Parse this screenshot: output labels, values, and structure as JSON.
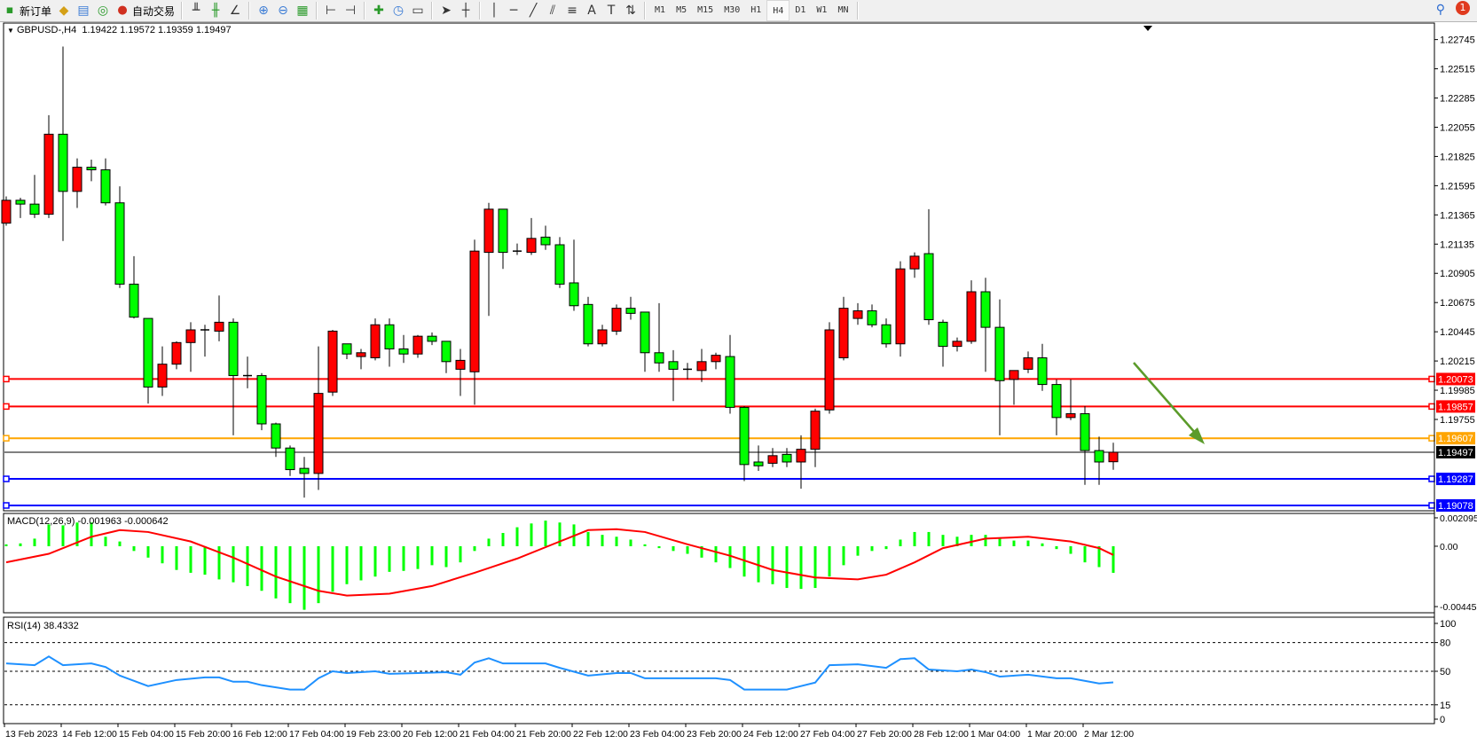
{
  "toolbar": {
    "new_order": "新订单",
    "auto_trading": "自动交易",
    "timeframes": [
      "M1",
      "M5",
      "M15",
      "M30",
      "H1",
      "H4",
      "D1",
      "W1",
      "MN"
    ],
    "active_timeframe": "H4",
    "notification_count": "1"
  },
  "chart": {
    "title": "GBPUSD-,H4",
    "ohlc_header": "1.19422 1.19572 1.19359 1.19497",
    "macd_label": "MACD(12,26,9) -0.001963 -0.000642",
    "rsi_label": "RSI(14) 38.4332"
  },
  "chart_data": [
    {
      "type": "candlestick",
      "symbol": "GBPUSD-",
      "timeframe": "H4",
      "candle_format": [
        "open",
        "high",
        "low",
        "close"
      ],
      "colors": {
        "bull": "#ff0000",
        "bear": "#00ff00",
        "outline": "#000000"
      },
      "ylim": [
        1.19036,
        1.22875
      ],
      "price_ticks": [
        "1.22745",
        "1.22515",
        "1.22285",
        "1.22055",
        "1.21825",
        "1.21595",
        "1.21365",
        "1.21135",
        "1.20905",
        "1.20675",
        "1.20445",
        "1.20215",
        "1.19985",
        "1.19755"
      ],
      "x_labels": [
        "13 Feb 2023",
        "14 Feb 12:00",
        "15 Feb 04:00",
        "15 Feb 20:00",
        "16 Feb 12:00",
        "17 Feb 04:00",
        "19 Feb 23:00",
        "20 Feb 12:00",
        "21 Feb 04:00",
        "21 Feb 20:00",
        "22 Feb 12:00",
        "23 Feb 04:00",
        "23 Feb 20:00",
        "24 Feb 12:00",
        "27 Feb 04:00",
        "27 Feb 20:00",
        "28 Feb 12:00",
        "1 Mar 04:00",
        "1 Mar 20:00",
        "2 Mar 12:00"
      ],
      "x_label_every_bars": 4,
      "hlines": [
        {
          "price": "1.20073",
          "color": "#ff0000"
        },
        {
          "price": "1.19857",
          "color": "#ff0000"
        },
        {
          "price": "1.19607",
          "color": "#ffa500"
        },
        {
          "price": "1.19287",
          "color": "#0000ff"
        },
        {
          "price": "1.19078",
          "color": "#0000ff"
        }
      ],
      "bid": {
        "price": "1.19497",
        "color": "#000000"
      },
      "arrow_color": "#5b9b2a",
      "candles": [
        [
          1.213,
          1.2151,
          1.2128,
          1.2148
        ],
        [
          1.2148,
          1.215,
          1.2134,
          1.2145
        ],
        [
          1.2145,
          1.2168,
          1.2134,
          1.2137
        ],
        [
          1.2137,
          1.2215,
          1.2134,
          1.22
        ],
        [
          1.22,
          1.2269,
          1.2116,
          1.2155
        ],
        [
          1.2155,
          1.2181,
          1.2142,
          1.2174
        ],
        [
          1.2174,
          1.218,
          1.2163,
          1.2172
        ],
        [
          1.2172,
          1.2181,
          1.2144,
          1.2146
        ],
        [
          1.2146,
          1.2159,
          1.2079,
          1.2082
        ],
        [
          1.2082,
          1.2104,
          1.2055,
          1.2056
        ],
        [
          1.2055,
          1.2055,
          1.1988,
          1.2001
        ],
        [
          1.2001,
          1.2033,
          1.1994,
          1.2019
        ],
        [
          1.2019,
          1.2037,
          1.2015,
          1.2036
        ],
        [
          1.2036,
          1.2052,
          1.2013,
          1.2046
        ],
        [
          1.2046,
          1.205,
          1.2025,
          1.2045
        ],
        [
          1.2045,
          1.2073,
          1.2037,
          1.2052
        ],
        [
          1.2052,
          1.2055,
          1.1963,
          1.201
        ],
        [
          1.201,
          1.2025,
          1.2,
          1.2009
        ],
        [
          1.201,
          1.2012,
          1.1967,
          1.1972
        ],
        [
          1.1972,
          1.1973,
          1.1946,
          1.1953
        ],
        [
          1.1953,
          1.1955,
          1.1931,
          1.1936
        ],
        [
          1.1937,
          1.1946,
          1.1914,
          1.1933
        ],
        [
          1.1933,
          1.2033,
          1.192,
          1.1996
        ],
        [
          1.1997,
          1.2046,
          1.1994,
          1.2045
        ],
        [
          1.2035,
          1.2035,
          1.2023,
          1.2027
        ],
        [
          1.2025,
          1.2031,
          1.2015,
          1.2028
        ],
        [
          1.2024,
          1.2055,
          1.2022,
          1.205
        ],
        [
          1.205,
          1.2055,
          1.2017,
          1.2031
        ],
        [
          1.2031,
          1.2042,
          1.202,
          1.2027
        ],
        [
          1.2027,
          1.2042,
          1.2024,
          1.2041
        ],
        [
          1.2041,
          1.2044,
          1.2034,
          1.2037
        ],
        [
          1.2037,
          1.2037,
          1.2012,
          1.2021
        ],
        [
          1.2015,
          1.2031,
          1.1994,
          1.2022
        ],
        [
          1.2013,
          1.2117,
          1.1987,
          1.2108
        ],
        [
          1.2107,
          1.2146,
          1.2057,
          1.2141
        ],
        [
          1.2141,
          1.2141,
          1.2094,
          1.2107
        ],
        [
          1.2107,
          1.2114,
          1.2105,
          1.2108
        ],
        [
          1.2107,
          1.2134,
          1.2105,
          1.2118
        ],
        [
          1.2119,
          1.2128,
          1.2109,
          1.2113
        ],
        [
          1.2113,
          1.2119,
          1.2079,
          1.2082
        ],
        [
          1.2083,
          1.2117,
          1.2061,
          1.2065
        ],
        [
          1.2066,
          1.2072,
          1.2033,
          1.2035
        ],
        [
          1.2035,
          1.205,
          1.2033,
          1.2046
        ],
        [
          1.2045,
          1.2066,
          1.2042,
          1.2063
        ],
        [
          1.2063,
          1.2072,
          1.2054,
          1.2059
        ],
        [
          1.206,
          1.206,
          1.2013,
          1.2028
        ],
        [
          1.2028,
          1.2067,
          1.2013,
          1.202
        ],
        [
          1.2021,
          1.203,
          1.199,
          1.2015
        ],
        [
          1.2015,
          1.202,
          1.2007,
          1.2015
        ],
        [
          1.2014,
          1.2031,
          1.2005,
          1.2021
        ],
        [
          1.2021,
          1.2028,
          1.2015,
          1.2026
        ],
        [
          1.2025,
          1.2042,
          1.198,
          1.1985
        ],
        [
          1.1985,
          1.1986,
          1.1927,
          1.194
        ],
        [
          1.1942,
          1.1955,
          1.1935,
          1.1939
        ],
        [
          1.1941,
          1.1953,
          1.1938,
          1.1947
        ],
        [
          1.1948,
          1.1953,
          1.1938,
          1.1942
        ],
        [
          1.1942,
          1.1963,
          1.1921,
          1.1952
        ],
        [
          1.1952,
          1.1984,
          1.1938,
          1.1982
        ],
        [
          1.1983,
          1.2052,
          1.198,
          1.2046
        ],
        [
          1.2024,
          1.2072,
          1.2022,
          1.2063
        ],
        [
          1.2055,
          1.2067,
          1.205,
          1.2061
        ],
        [
          1.2061,
          1.2066,
          1.2048,
          1.205
        ],
        [
          1.205,
          1.2055,
          1.2032,
          1.2035
        ],
        [
          1.2035,
          1.21,
          1.2025,
          1.2094
        ],
        [
          1.2094,
          1.2107,
          1.2087,
          1.2104
        ],
        [
          1.2106,
          1.2141,
          1.205,
          1.2054
        ],
        [
          1.2052,
          1.2054,
          1.2017,
          1.2033
        ],
        [
          1.2033,
          1.204,
          1.2029,
          1.2037
        ],
        [
          1.2037,
          1.2085,
          1.2035,
          1.2076
        ],
        [
          1.2076,
          1.2087,
          1.2013,
          1.2048
        ],
        [
          1.2048,
          1.207,
          1.1963,
          1.2006
        ],
        [
          1.2007,
          1.2014,
          1.1987,
          1.2014
        ],
        [
          1.2015,
          1.2029,
          1.2012,
          1.2024
        ],
        [
          1.2024,
          1.2035,
          1.1998,
          1.2003
        ],
        [
          1.2003,
          1.2007,
          1.1963,
          1.1977
        ],
        [
          1.1977,
          1.2007,
          1.1975,
          1.198
        ],
        [
          1.198,
          1.1986,
          1.1924,
          1.1951
        ],
        [
          1.1951,
          1.1962,
          1.1924,
          1.1942
        ],
        [
          1.19422,
          1.19572,
          1.19359,
          1.19497
        ]
      ]
    },
    {
      "type": "bar",
      "indicator": "MACD(12,26,9)",
      "ylim": [
        -0.00491,
        0.00242
      ],
      "ticks": [
        "0.002095",
        "0.00",
        "-0.004455"
      ],
      "hist_color": "#00ff00",
      "signal_color": "#ff0000",
      "histogram": [
        0.00014,
        0.00021,
        0.00056,
        0.00161,
        0.00154,
        0.00175,
        0.00175,
        0.0007,
        0.00035,
        -0.00035,
        -0.00084,
        -0.00126,
        -0.00175,
        -0.00196,
        -0.0021,
        -0.00245,
        -0.00266,
        -0.00294,
        -0.00329,
        -0.00385,
        -0.0042,
        -0.00469,
        -0.0042,
        -0.00336,
        -0.0028,
        -0.00252,
        -0.00224,
        -0.00189,
        -0.00182,
        -0.00168,
        -0.0014,
        -0.00154,
        -0.00119,
        -0.00035,
        0.00056,
        0.00098,
        0.0014,
        0.00168,
        0.00189,
        0.00175,
        0.00161,
        0.00105,
        0.00084,
        0.0007,
        0.00049,
        0.00014,
        -0.00014,
        -0.00035,
        -0.00056,
        -0.00084,
        -0.00119,
        -0.00161,
        -0.00224,
        -0.00266,
        -0.0028,
        -0.00308,
        -0.00315,
        -0.00308,
        -0.00224,
        -0.0014,
        -0.0007,
        -0.00035,
        -0.00021,
        0.00049,
        0.00105,
        0.00105,
        0.00084,
        0.0007,
        0.00084,
        0.00084,
        0.00056,
        0.00042,
        0.00042,
        0.00021,
        -0.00021,
        -0.00056,
        -0.00119,
        -0.00154,
        -0.001963
      ],
      "signal": [
        [
          0,
          -0.00119
        ],
        [
          3,
          -0.00056
        ],
        [
          6,
          0.0007
        ],
        [
          8,
          0.00119
        ],
        [
          10,
          0.00105
        ],
        [
          13,
          0.00035
        ],
        [
          16,
          -0.00084
        ],
        [
          19,
          -0.00224
        ],
        [
          22,
          -0.00329
        ],
        [
          24,
          -0.00364
        ],
        [
          27,
          -0.0035
        ],
        [
          30,
          -0.00294
        ],
        [
          33,
          -0.00196
        ],
        [
          36,
          -0.00091
        ],
        [
          39,
          0.00035
        ],
        [
          41,
          0.00119
        ],
        [
          43,
          0.00126
        ],
        [
          45,
          0.00105
        ],
        [
          48,
          0.00014
        ],
        [
          51,
          -0.0007
        ],
        [
          54,
          -0.00175
        ],
        [
          57,
          -0.00231
        ],
        [
          60,
          -0.00245
        ],
        [
          62,
          -0.0021
        ],
        [
          64,
          -0.00119
        ],
        [
          66,
          -0.00014
        ],
        [
          69,
          0.00056
        ],
        [
          72,
          0.0007
        ],
        [
          75,
          0.00035
        ],
        [
          77,
          -0.00014
        ],
        [
          78,
          -0.000642
        ]
      ]
    },
    {
      "type": "line",
      "indicator": "RSI(14)",
      "ylim": [
        0,
        100
      ],
      "ticks": [
        "100",
        "80",
        "50",
        "15",
        "0"
      ],
      "levels": [
        80,
        50,
        15
      ],
      "line_color": "#1e90ff",
      "points": [
        [
          0,
          58.2
        ],
        [
          2,
          56.4
        ],
        [
          3,
          65.5
        ],
        [
          4,
          56.4
        ],
        [
          6,
          58.2
        ],
        [
          7,
          54.5
        ],
        [
          8,
          45.5
        ],
        [
          10,
          34.5
        ],
        [
          12,
          40.9
        ],
        [
          14,
          43.6
        ],
        [
          15,
          43.6
        ],
        [
          16,
          39.1
        ],
        [
          17,
          39.1
        ],
        [
          18,
          35.5
        ],
        [
          20,
          30.9
        ],
        [
          21,
          30.9
        ],
        [
          22,
          42.7
        ],
        [
          23,
          50
        ],
        [
          24,
          48.2
        ],
        [
          26,
          50
        ],
        [
          27,
          47.3
        ],
        [
          29,
          48.2
        ],
        [
          31,
          49.1
        ],
        [
          32,
          46.4
        ],
        [
          33,
          59.1
        ],
        [
          34,
          63.6
        ],
        [
          35,
          58.2
        ],
        [
          38,
          58.2
        ],
        [
          39,
          53.6
        ],
        [
          41,
          45.5
        ],
        [
          43,
          48.2
        ],
        [
          44,
          48.2
        ],
        [
          45,
          42.7
        ],
        [
          48,
          42.7
        ],
        [
          50,
          42.7
        ],
        [
          51,
          40.9
        ],
        [
          52,
          30.9
        ],
        [
          55,
          30.9
        ],
        [
          57,
          38.2
        ],
        [
          58,
          56.4
        ],
        [
          60,
          57.3
        ],
        [
          62,
          53.6
        ],
        [
          63,
          62.7
        ],
        [
          64,
          63.6
        ],
        [
          65,
          51.8
        ],
        [
          67,
          50
        ],
        [
          68,
          51.8
        ],
        [
          69,
          49.1
        ],
        [
          70,
          44.5
        ],
        [
          72,
          46.4
        ],
        [
          74,
          42.7
        ],
        [
          75,
          42.7
        ],
        [
          77,
          37.3
        ],
        [
          78,
          38.4332
        ]
      ]
    }
  ]
}
